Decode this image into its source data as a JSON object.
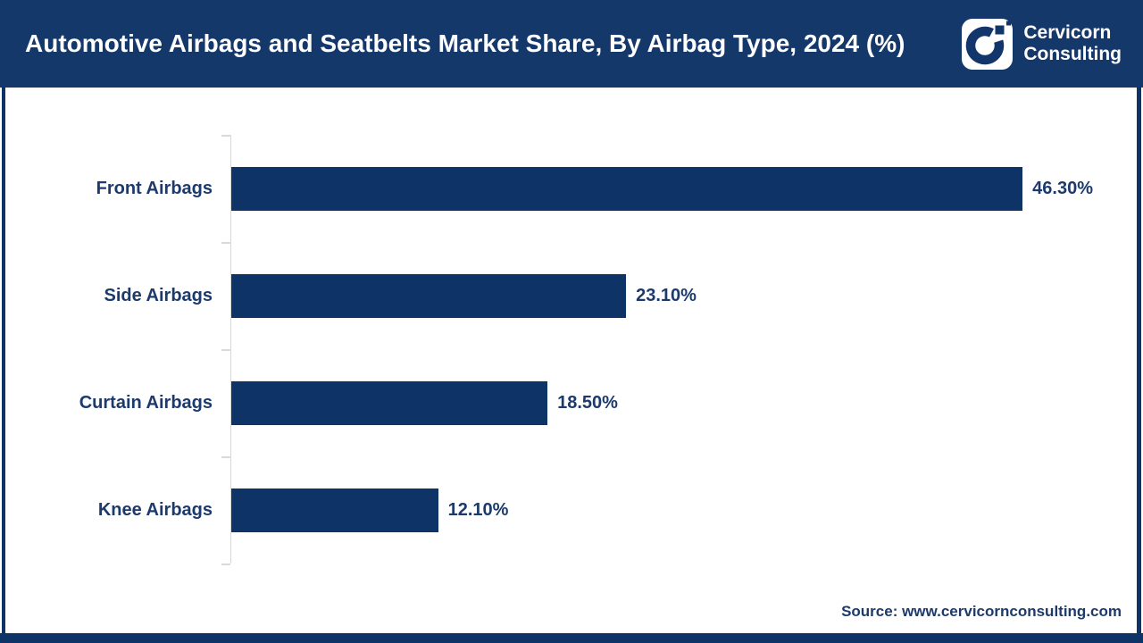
{
  "header": {
    "title": "Automotive Airbags and Seatbelts Market Share, By Airbag Type, 2024 (%)",
    "logo": {
      "line1": "Cervicorn",
      "line2": "Consulting",
      "icon": "cervicorn-c-mark"
    }
  },
  "chart_data": {
    "type": "bar",
    "orientation": "horizontal",
    "title": "Automotive Airbags and Seatbelts Market Share, By Airbag Type, 2024 (%)",
    "categories": [
      "Front Airbags",
      "Side Airbags",
      "Curtain Airbags",
      "Knee Airbags"
    ],
    "values": [
      46.3,
      23.1,
      18.5,
      12.1
    ],
    "value_labels": [
      "46.30%",
      "23.10%",
      "18.50%",
      "12.10%"
    ],
    "xlabel": "",
    "ylabel": "",
    "xlim": [
      0,
      50
    ],
    "grid": false,
    "legend": false,
    "bar_color": "#0e3366",
    "label_color": "#1c3a6b",
    "axis_color": "#d9d9d9"
  },
  "footer": {
    "source": "Source: www.cervicornconsulting.com"
  },
  "colors": {
    "header_background": "#15386b",
    "bar_navy": "#0e3366",
    "text_navy": "#1c3a6b",
    "axis_gray": "#d9d9d9",
    "background": "#ffffff"
  }
}
